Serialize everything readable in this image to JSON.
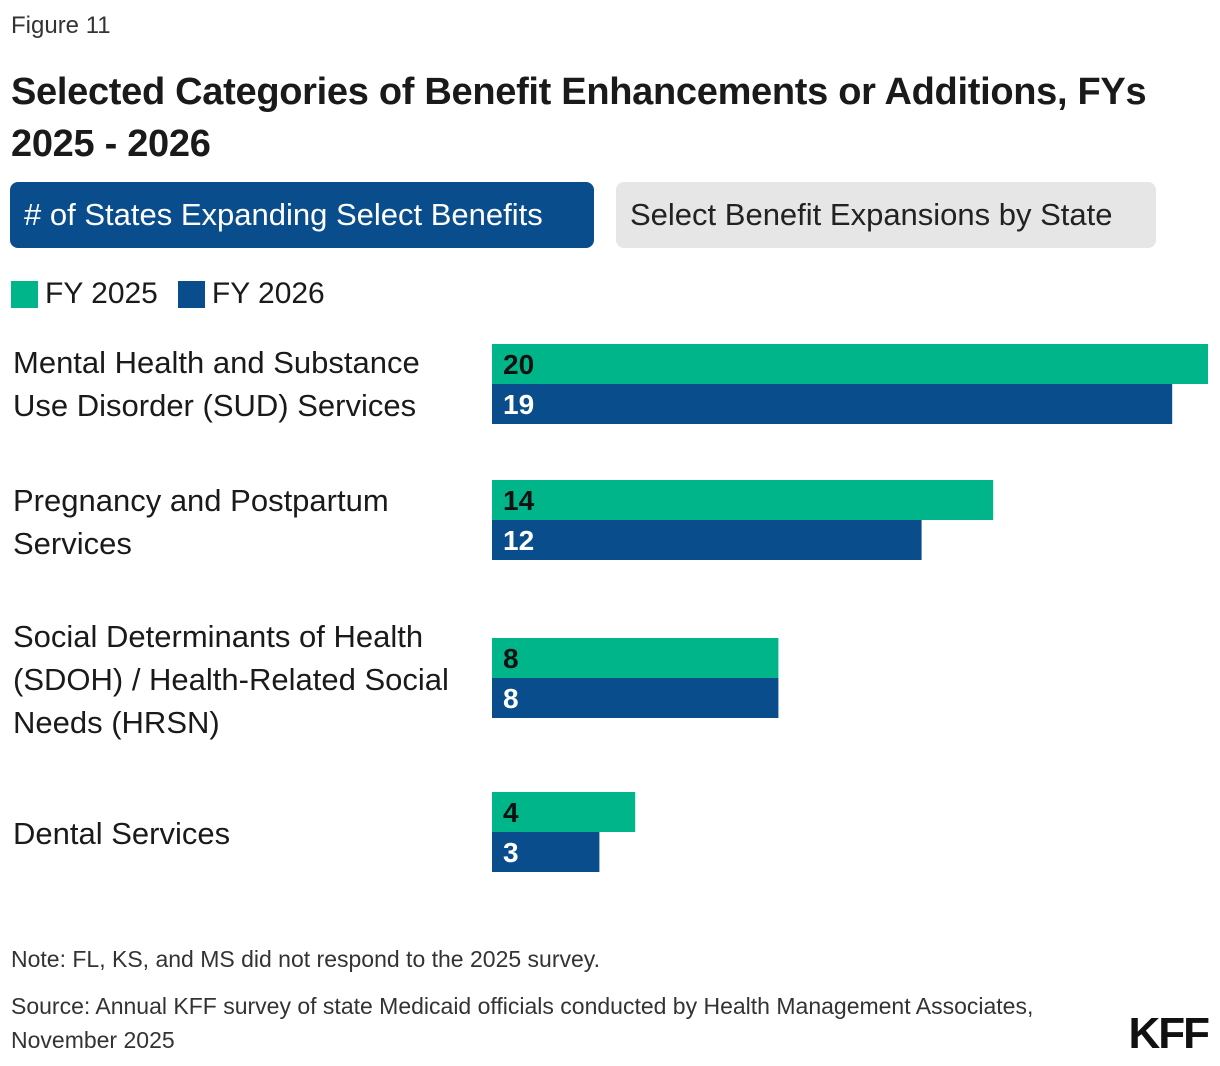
{
  "header": {
    "figure_label": "Figure 11",
    "title": "Selected Categories of Benefit Enhancements or Additions, FYs 2025 - 2026"
  },
  "tabs": [
    {
      "label": "# of States Expanding Select Benefits",
      "active": true
    },
    {
      "label": "Select Benefit Expansions by State",
      "active": false
    }
  ],
  "colors": {
    "fy2025": "#00b58a",
    "fy2026": "#0a4d8c",
    "label_dark": "#111111",
    "label_light": "#ffffff"
  },
  "chart_data": {
    "type": "bar",
    "orientation": "horizontal",
    "title": "Selected Categories of Benefit Enhancements or Additions, FYs 2025 - 2026",
    "categories": [
      "Mental Health and Substance Use Disorder (SUD) Services",
      "Pregnancy and Postpartum Services",
      "Social Determinants of Health (SDOH) / Health-Related Social Needs (HRSN)",
      "Dental Services"
    ],
    "series": [
      {
        "name": "FY 2025",
        "values": [
          20,
          14,
          8,
          4
        ]
      },
      {
        "name": "FY 2026",
        "values": [
          19,
          12,
          8,
          3
        ]
      }
    ],
    "xlim": [
      0,
      20
    ],
    "legend": "top-left",
    "grid": false
  },
  "footer": {
    "note": "Note: FL, KS, and MS did not respond to the 2025 survey.",
    "source": "Source: Annual KFF survey of state Medicaid officials conducted by Health Management Associates, November 2025",
    "logo": "KFF"
  }
}
